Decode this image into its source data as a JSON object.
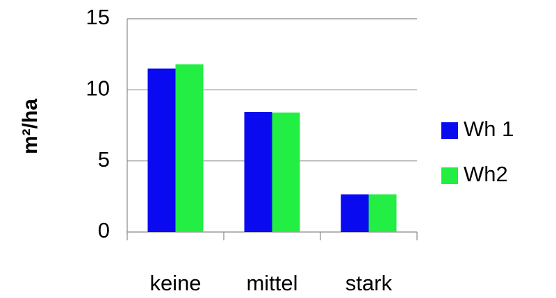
{
  "chart_data": {
    "type": "bar",
    "y_label": "m²/ha",
    "categories": [
      "keine",
      "mittel",
      "stark"
    ],
    "series": [
      {
        "name": "Wh 1",
        "color": "#0a0af0",
        "values": [
          11.5,
          8.45,
          2.65
        ]
      },
      {
        "name": "Wh2",
        "color": "#22ee44",
        "values": [
          11.8,
          8.4,
          2.65
        ]
      }
    ],
    "ylim": [
      0,
      15
    ],
    "yticks": [
      0,
      5,
      10,
      15
    ],
    "grid": true,
    "legend": "right"
  }
}
